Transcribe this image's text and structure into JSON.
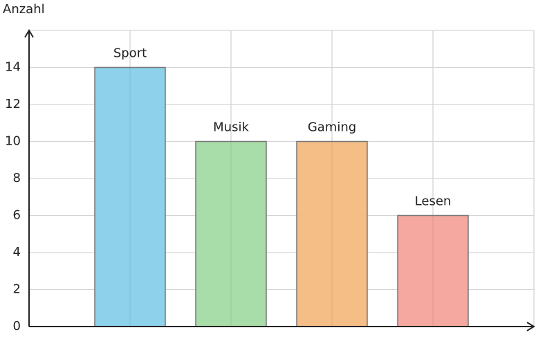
{
  "chart_data": {
    "type": "bar",
    "y_label": "Anzahl",
    "categories": [
      "Sport",
      "Musik",
      "Gaming",
      "Lesen"
    ],
    "values": [
      14,
      10,
      10,
      6
    ],
    "colors": [
      "#87cfea",
      "#a3dba4",
      "#f3bb80",
      "#f3a39b"
    ],
    "ylim": [
      0,
      16
    ],
    "yticks": [
      0,
      2,
      4,
      6,
      8,
      10,
      12,
      14
    ],
    "grid": true
  }
}
